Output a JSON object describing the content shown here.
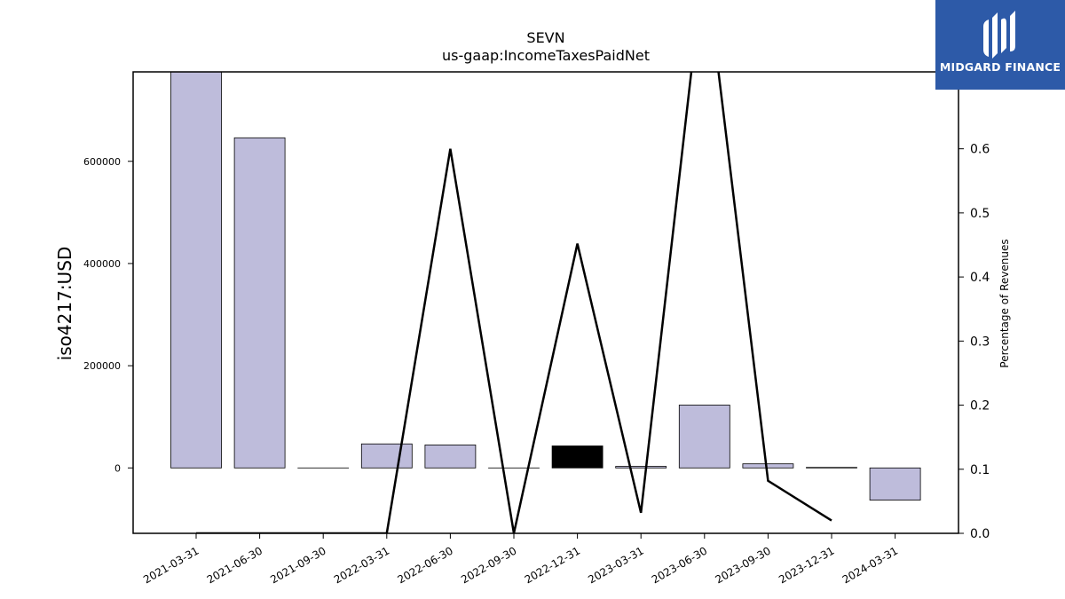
{
  "logo": {
    "text": "MIDGARD FINANCE",
    "icon": "midgard-logo-icon",
    "background": "#2d5aa8"
  },
  "chart_data": {
    "type": "bar",
    "title": "SEVN",
    "subtitle": "us-gaap:IncomeTaxesPaidNet",
    "ylabel": "iso4217:USD",
    "y2label": "Percentage of Revenues",
    "categories": [
      "2021-03-31",
      "2021-06-30",
      "2021-09-30",
      "2022-03-31",
      "2022-06-30",
      "2022-09-30",
      "2022-12-31",
      "2023-03-31",
      "2023-06-30",
      "2023-09-30",
      "2023-12-31",
      "2024-03-31"
    ],
    "values": [
      785000,
      646000,
      0,
      47000,
      45000,
      0,
      43000,
      3000,
      123000,
      8000,
      1000,
      -63000
    ],
    "highlight_index": 6,
    "ratio_values": [
      0.0,
      0.0,
      0.0,
      0.0,
      0.6,
      0.0,
      0.452,
      0.032,
      0.9,
      0.082,
      0.02,
      null
    ],
    "ylim": [
      -128000,
      775000
    ],
    "yticks": [
      0,
      200000,
      400000,
      600000
    ],
    "ytick_labels": [
      "0",
      "200000",
      "400000",
      "600000"
    ],
    "y2lim": [
      0.0,
      0.72
    ],
    "y2ticks": [
      0.0,
      0.1,
      0.2,
      0.3,
      0.4,
      0.5,
      0.6
    ],
    "y2tick_labels": [
      "0.0",
      "0.1",
      "0.2",
      "0.3",
      "0.4",
      "0.5",
      "0.6"
    ],
    "colors": {
      "bar": "#bebcdb",
      "highlight": "#000000",
      "line": "#000000"
    },
    "grid": false
  }
}
